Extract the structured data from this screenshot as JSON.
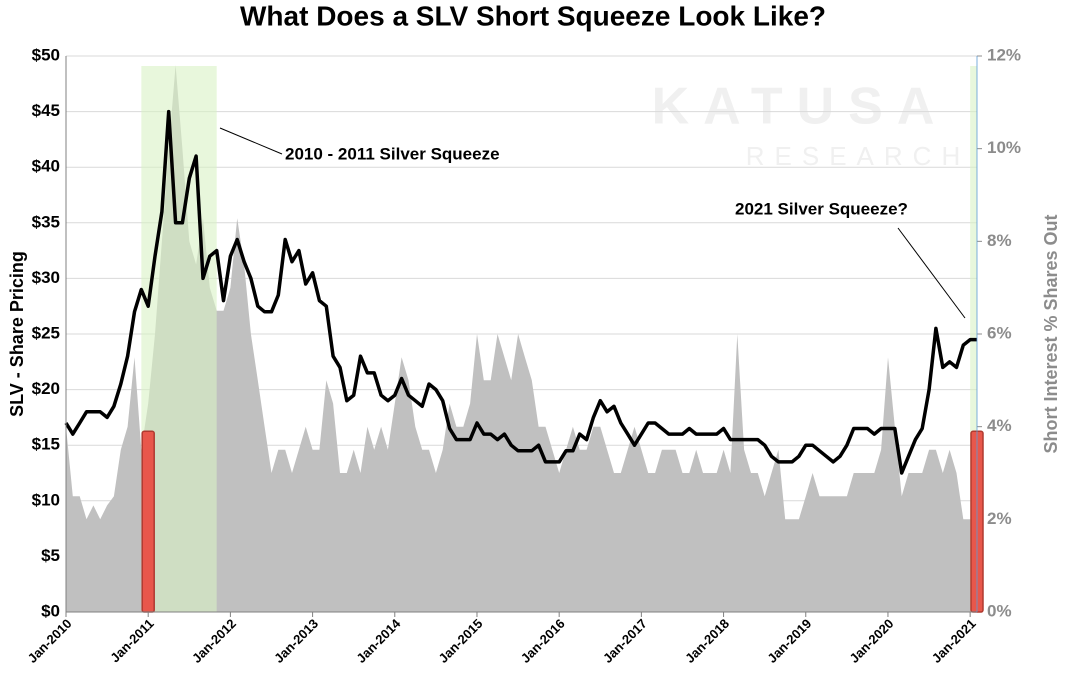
{
  "chart_data": {
    "type": "line",
    "title": "What Does a SLV Short Squeeze Look Like?",
    "y_label": "SLV - Share Pricing",
    "y2_label": "Short Interest % Shares Out",
    "watermark": [
      "KATUSA",
      "RESEARCH"
    ],
    "annotations": [
      {
        "text": "2010 - 2011 Silver Squeeze",
        "x": "Sep-2011",
        "y": 41
      },
      {
        "text": "2021 Silver Squeeze?",
        "x": "Feb-2021",
        "y": 27
      }
    ],
    "x": [
      "Jan-2010",
      "Feb-2010",
      "Mar-2010",
      "Apr-2010",
      "May-2010",
      "Jun-2010",
      "Jul-2010",
      "Aug-2010",
      "Sep-2010",
      "Oct-2010",
      "Nov-2010",
      "Dec-2010",
      "Jan-2011",
      "Feb-2011",
      "Mar-2011",
      "Apr-2011",
      "May-2011",
      "Jun-2011",
      "Jul-2011",
      "Aug-2011",
      "Sep-2011",
      "Oct-2011",
      "Nov-2011",
      "Dec-2011",
      "Jan-2012",
      "Feb-2012",
      "Mar-2012",
      "Apr-2012",
      "May-2012",
      "Jun-2012",
      "Jul-2012",
      "Aug-2012",
      "Sep-2012",
      "Oct-2012",
      "Nov-2012",
      "Dec-2012",
      "Jan-2013",
      "Feb-2013",
      "Mar-2013",
      "Apr-2013",
      "May-2013",
      "Jun-2013",
      "Jul-2013",
      "Aug-2013",
      "Sep-2013",
      "Oct-2013",
      "Nov-2013",
      "Dec-2013",
      "Jan-2014",
      "Feb-2014",
      "Mar-2014",
      "Apr-2014",
      "May-2014",
      "Jun-2014",
      "Jul-2014",
      "Aug-2014",
      "Sep-2014",
      "Oct-2014",
      "Nov-2014",
      "Dec-2014",
      "Jan-2015",
      "Feb-2015",
      "Mar-2015",
      "Apr-2015",
      "May-2015",
      "Jun-2015",
      "Jul-2015",
      "Aug-2015",
      "Sep-2015",
      "Oct-2015",
      "Nov-2015",
      "Dec-2015",
      "Jan-2016",
      "Feb-2016",
      "Mar-2016",
      "Apr-2016",
      "May-2016",
      "Jun-2016",
      "Jul-2016",
      "Aug-2016",
      "Sep-2016",
      "Oct-2016",
      "Nov-2016",
      "Dec-2016",
      "Jan-2017",
      "Feb-2017",
      "Mar-2017",
      "Apr-2017",
      "May-2017",
      "Jun-2017",
      "Jul-2017",
      "Aug-2017",
      "Sep-2017",
      "Oct-2017",
      "Nov-2017",
      "Dec-2017",
      "Jan-2018",
      "Feb-2018",
      "Mar-2018",
      "Apr-2018",
      "May-2018",
      "Jun-2018",
      "Jul-2018",
      "Aug-2018",
      "Sep-2018",
      "Oct-2018",
      "Nov-2018",
      "Dec-2018",
      "Jan-2019",
      "Feb-2019",
      "Mar-2019",
      "Apr-2019",
      "May-2019",
      "Jun-2019",
      "Jul-2019",
      "Aug-2019",
      "Sep-2019",
      "Oct-2019",
      "Nov-2019",
      "Dec-2019",
      "Jan-2020",
      "Feb-2020",
      "Mar-2020",
      "Apr-2020",
      "May-2020",
      "Jun-2020",
      "Jul-2020",
      "Aug-2020",
      "Sep-2020",
      "Oct-2020",
      "Nov-2020",
      "Dec-2020",
      "Jan-2021",
      "Feb-2021"
    ],
    "series": [
      {
        "name": "SLV - Share Pricing",
        "color": "#000000",
        "values": [
          17,
          16,
          17,
          18,
          18,
          18,
          17.5,
          18.5,
          20.5,
          23,
          27,
          29,
          27.5,
          32,
          36,
          45,
          35,
          35,
          39,
          41,
          30,
          32,
          32.5,
          28,
          32,
          33.5,
          31.5,
          30,
          27.5,
          27,
          27,
          28.5,
          33.5,
          31.5,
          32.5,
          29.5,
          30.5,
          28,
          27.5,
          23,
          22,
          19,
          19.5,
          23,
          21.5,
          21.5,
          19.5,
          19,
          19.5,
          21,
          19.5,
          19,
          18.5,
          20.5,
          20,
          19,
          16.5,
          15.5,
          15.5,
          15.5,
          17,
          16,
          16,
          15.5,
          16,
          15,
          14.5,
          14.5,
          14.5,
          15,
          13.5,
          13.5,
          13.5,
          14.5,
          14.5,
          16,
          15.5,
          17.5,
          19,
          18,
          18.5,
          17,
          16,
          15,
          16,
          17,
          17,
          16.5,
          16,
          16,
          16,
          16.5,
          16,
          16,
          16,
          16,
          16.5,
          15.5,
          15.5,
          15.5,
          15.5,
          15.5,
          15,
          14,
          13.5,
          13.5,
          13.5,
          14,
          15,
          15,
          14.5,
          14,
          13.5,
          14,
          15,
          16.5,
          16.5,
          16.5,
          16,
          16.5,
          16.5,
          16.5,
          12.5,
          14,
          15.5,
          16.5,
          20,
          25.5,
          22,
          22.5,
          22,
          24,
          24.5,
          24.5
        ]
      },
      {
        "name": "Short Interest % Shares Out",
        "color": "#c0c0c0",
        "axis": "y2",
        "values": [
          4,
          2.5,
          2.5,
          2,
          2.3,
          2,
          2.3,
          2.5,
          3.5,
          4,
          5.5,
          3.5,
          4.5,
          6,
          8,
          10,
          11.8,
          10,
          8,
          7.5,
          8.5,
          7,
          6.5,
          6.5,
          7,
          8.5,
          7.5,
          6,
          5,
          4,
          3,
          3.5,
          3.5,
          3,
          3.5,
          4,
          3.5,
          3.5,
          5,
          4.5,
          3,
          3,
          3.5,
          3,
          4,
          3.5,
          4,
          3.5,
          4.5,
          5.5,
          5,
          4,
          3.5,
          3.5,
          3,
          3.5,
          4.5,
          4,
          4,
          4.5,
          6,
          5,
          5,
          6,
          5.5,
          5,
          6,
          5.5,
          5,
          4,
          4,
          3.5,
          3,
          3.5,
          4,
          3.5,
          3.5,
          4,
          4,
          3.5,
          3,
          3,
          3.5,
          4,
          3.5,
          3,
          3,
          3.5,
          3.5,
          3.5,
          3,
          3,
          3.5,
          3,
          3,
          3,
          3.5,
          3,
          6,
          3.5,
          3,
          3,
          2.5,
          3,
          3.5,
          2,
          2,
          2,
          2.5,
          3,
          2.5,
          2.5,
          2.5,
          2.5,
          2.5,
          3,
          3,
          3,
          3,
          3.5,
          5.5,
          4,
          2.5,
          3,
          3,
          3,
          3.5,
          3.5,
          3,
          3.5,
          3,
          2,
          2,
          2
        ]
      }
    ],
    "regions": [
      {
        "start": "Dec-2010",
        "end": "Nov-2011",
        "color": "#d9f2c4"
      },
      {
        "start": "Jan-2021",
        "end": "Feb-2021",
        "color": "#d9f2c4"
      }
    ],
    "markers": [
      {
        "x": "Jan-2011",
        "value": 3.9,
        "axis": "y2",
        "color": "#e8574b"
      },
      {
        "x": "Feb-2021",
        "value": 3.9,
        "axis": "y2",
        "color": "#e8574b"
      }
    ],
    "xlim": [
      "Jan-2010",
      "Feb-2021"
    ],
    "xticks": [
      "Jan-2010",
      "Jan-2011",
      "Jan-2012",
      "Jan-2013",
      "Jan-2014",
      "Jan-2015",
      "Jan-2016",
      "Jan-2017",
      "Jan-2018",
      "Jan-2019",
      "Jan-2020",
      "Jan-2021"
    ],
    "ylim": [
      0,
      50
    ],
    "yticks": [
      {
        "value": 0,
        "label": "$0"
      },
      {
        "value": 5,
        "label": "$5"
      },
      {
        "value": 10,
        "label": "$10"
      },
      {
        "value": 15,
        "label": "$15"
      },
      {
        "value": 20,
        "label": "$20"
      },
      {
        "value": 25,
        "label": "$25"
      },
      {
        "value": 30,
        "label": "$30"
      },
      {
        "value": 35,
        "label": "$35"
      },
      {
        "value": 40,
        "label": "$40"
      },
      {
        "value": 45,
        "label": "$45"
      },
      {
        "value": 50,
        "label": "$50"
      }
    ],
    "y2lim": [
      0,
      12
    ],
    "y2ticks": [
      {
        "value": 0,
        "label": "0%"
      },
      {
        "value": 2,
        "label": "2%"
      },
      {
        "value": 4,
        "label": "4%"
      },
      {
        "value": 6,
        "label": "6%"
      },
      {
        "value": 8,
        "label": "8%"
      },
      {
        "value": 10,
        "label": "10%"
      },
      {
        "value": 12,
        "label": "12%"
      }
    ],
    "grid": true
  }
}
